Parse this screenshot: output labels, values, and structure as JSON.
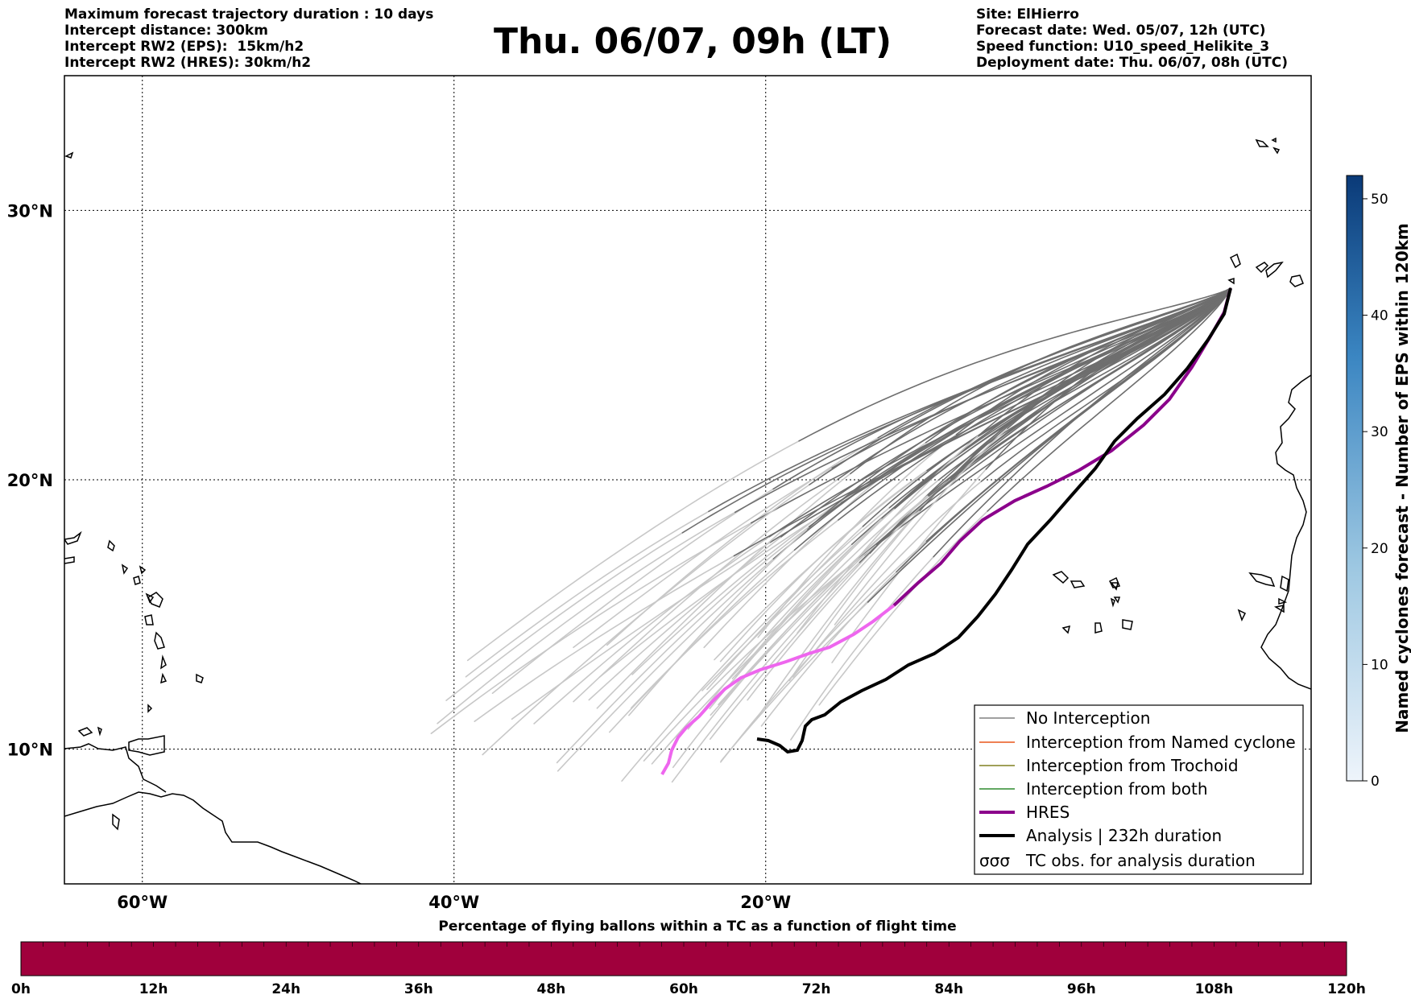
{
  "header": {
    "left_lines": [
      "Maximum forecast trajectory duration : 10 days",
      "Intercept distance: 300km",
      "Intercept RW2 (EPS):  15km/h2",
      "Intercept RW2 (HRES): 30km/h2"
    ],
    "title": "Thu. 06/07, 09h (LT)",
    "right_lines": [
      "Site: ElHierro",
      "Forecast date: Wed. 05/07, 12h (UTC)",
      "Speed function: U10_speed_Helikite_3",
      "Deployment date: Thu. 06/07, 08h (UTC)"
    ]
  },
  "map": {
    "lon_range": [
      -65,
      15
    ],
    "lat_range": [
      5,
      35
    ],
    "lon_ticks": [
      {
        "value": -60,
        "label": "60°W"
      },
      {
        "value": -40,
        "label": "40°W"
      },
      {
        "value": -20,
        "label": "20°W"
      }
    ],
    "lat_ticks": [
      {
        "value": 30,
        "label": "30°N"
      },
      {
        "value": 20,
        "label": "20°N"
      },
      {
        "value": 10,
        "label": "10°N"
      }
    ],
    "colors": {
      "no_interception": "#6e6e6e",
      "no_interception_late": "#c8c8c8",
      "named_cyclone": "#e8561c",
      "trochoid": "#808020",
      "both": "#2e8b2e",
      "hres": "#8b008b",
      "hres_late": "#ee66ee",
      "analysis": "#000000"
    }
  },
  "legend": {
    "items": [
      {
        "label": "No Interception",
        "style": "thin",
        "color": "#808080"
      },
      {
        "label": "Interception from Named cyclone",
        "style": "thin",
        "color": "#e8561c"
      },
      {
        "label": "Interception from Trochoid",
        "style": "thin",
        "color": "#808020"
      },
      {
        "label": "Interception from both",
        "style": "thin",
        "color": "#2e8b2e"
      },
      {
        "label": "HRES",
        "style": "thick",
        "color": "#8b008b"
      },
      {
        "label": "Analysis | 232h duration",
        "style": "thick",
        "color": "#000000"
      },
      {
        "label": "TC obs. for analysis duration",
        "style": "symbol",
        "color": "#000000"
      }
    ]
  },
  "colorbar_right": {
    "label": "Named cyclones forecast - Number of EPS within 120km",
    "ticks": [
      "0",
      "10",
      "20",
      "30",
      "40",
      "50"
    ],
    "max": 52,
    "color_low": "#e8f0f8",
    "color_high": "#0a3a78"
  },
  "colorbar_bottom": {
    "title": "Percentage of flying ballons within a TC as a function of flight time",
    "ticks": [
      "0h",
      "12h",
      "24h",
      "36h",
      "48h",
      "60h",
      "72h",
      "84h",
      "96h",
      "108h",
      "120h"
    ],
    "fill_color": "#a0003c"
  }
}
